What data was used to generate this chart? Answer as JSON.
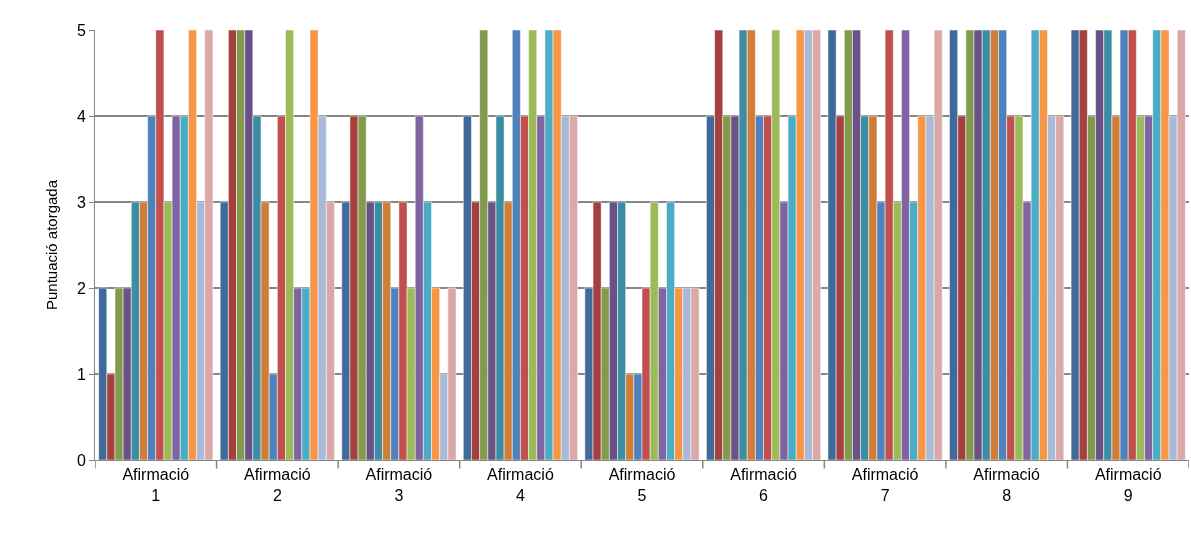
{
  "chart_data": {
    "type": "bar",
    "ylabel": "Puntuació atorgada",
    "categories": [
      "Afirmació 1",
      "Afirmació 2",
      "Afirmació 3",
      "Afirmació 4",
      "Afirmació 5",
      "Afirmació 6",
      "Afirmació 7",
      "Afirmació 8",
      "Afirmació 9"
    ],
    "series": [
      {
        "color": "#3f6a9a",
        "values": [
          2,
          3,
          3,
          4,
          2,
          4,
          5,
          5,
          5
        ]
      },
      {
        "color": "#a4403d",
        "values": [
          1,
          5,
          4,
          3,
          3,
          5,
          4,
          4,
          5
        ]
      },
      {
        "color": "#829a4b",
        "values": [
          2,
          5,
          4,
          5,
          2,
          4,
          5,
          5,
          4
        ]
      },
      {
        "color": "#6a5287",
        "values": [
          2,
          5,
          3,
          3,
          3,
          4,
          5,
          5,
          5
        ]
      },
      {
        "color": "#3c8ca3",
        "values": [
          3,
          4,
          3,
          4,
          3,
          5,
          4,
          5,
          5
        ]
      },
      {
        "color": "#d07e37",
        "values": [
          3,
          3,
          3,
          3,
          1,
          5,
          4,
          5,
          4
        ]
      },
      {
        "color": "#4f81bd",
        "values": [
          4,
          1,
          2,
          5,
          1,
          4,
          3,
          5,
          5
        ]
      },
      {
        "color": "#c0504d",
        "values": [
          5,
          4,
          3,
          4,
          2,
          4,
          5,
          4,
          5
        ]
      },
      {
        "color": "#9bbb59",
        "values": [
          3,
          5,
          2,
          5,
          3,
          5,
          3,
          4,
          4
        ]
      },
      {
        "color": "#8064a2",
        "values": [
          4,
          2,
          4,
          4,
          2,
          3,
          5,
          3,
          4
        ]
      },
      {
        "color": "#4bacc6",
        "values": [
          4,
          2,
          3,
          5,
          3,
          4,
          3,
          5,
          5
        ]
      },
      {
        "color": "#f79646",
        "values": [
          5,
          5,
          2,
          5,
          2,
          5,
          4,
          5,
          5
        ]
      },
      {
        "color": "#a9b9d8",
        "values": [
          3,
          4,
          1,
          4,
          2,
          5,
          4,
          4,
          4
        ]
      },
      {
        "color": "#d9a8a7",
        "values": [
          5,
          3,
          2,
          4,
          2,
          5,
          5,
          4,
          5
        ]
      }
    ],
    "ylim": [
      0,
      5
    ],
    "yticks": [
      0,
      1,
      2,
      3,
      4,
      5
    ],
    "grid": "y"
  }
}
